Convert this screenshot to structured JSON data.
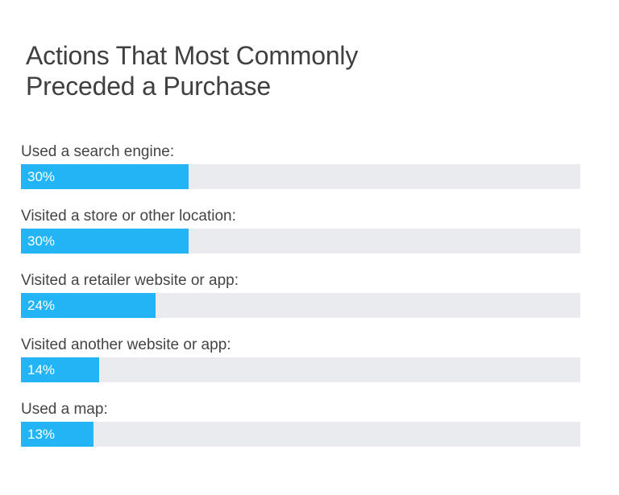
{
  "chart_data": {
    "type": "bar",
    "orientation": "horizontal",
    "title": "Actions That Most Commonly Preceded a Purchase",
    "title_lines": [
      "Actions That Most Commonly",
      "Preceded a Purchase"
    ],
    "xlim": [
      0,
      100
    ],
    "categories": [
      "Used a search engine:",
      "Visited a store or other location:",
      "Visited a retailer website or app:",
      "Visited another website or app:",
      "Used a map:"
    ],
    "values": [
      30,
      30,
      24,
      14,
      13
    ],
    "value_labels": [
      "30%",
      "30%",
      "24%",
      "14%",
      "13%"
    ],
    "grid": false,
    "legend": "none"
  },
  "colors": {
    "bar_fill": "#23b4f5",
    "bar_track": "#e9ebef",
    "title_text": "#404040",
    "label_text": "#444444",
    "value_text": "#ffffff"
  }
}
